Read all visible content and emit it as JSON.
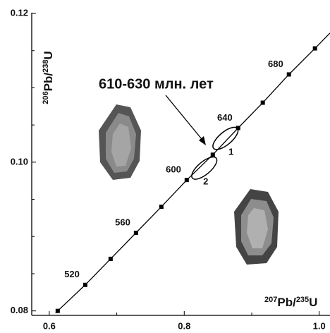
{
  "chart_data": {
    "type": "concordia",
    "x_label": [
      "207",
      "Pb/",
      "235",
      "U"
    ],
    "y_label": [
      "206",
      "Pb/",
      "238",
      "U"
    ],
    "xlim": [
      0.574,
      1.016
    ],
    "ylim": [
      0.0794,
      0.1201
    ],
    "xticks": [
      0.6,
      0.8,
      {
        "value": 1,
        "label": "1.0"
      }
    ],
    "yticks": [
      0.08,
      {
        "value": 0.1,
        "label": "0.10"
      },
      0.12
    ],
    "xminor": [
      0.7,
      0.9
    ],
    "yminor": [
      0.085,
      0.09,
      0.095,
      0.105,
      0.11,
      0.115
    ],
    "concordia": {
      "x": [
        0.6125,
        0.6533,
        0.6909,
        0.7285,
        0.7661,
        0.8037,
        0.8423,
        0.8799,
        0.9164,
        0.9551,
        0.9937
      ],
      "y": [
        0.08,
        0.0835,
        0.087,
        0.0905,
        0.094,
        0.0976,
        0.101,
        0.1046,
        0.108,
        0.1118,
        0.1153
      ],
      "age_labels": [
        null,
        520,
        null,
        560,
        null,
        600,
        null,
        640,
        null,
        680,
        null
      ],
      "color": "#000000"
    },
    "ellipses": {
      "labels": [
        "1",
        "2"
      ],
      "x": [
        0.8611,
        0.8297
      ],
      "y": [
        0.1032,
        0.0992
      ]
    },
    "annotation": "610-630 млн. лет"
  }
}
